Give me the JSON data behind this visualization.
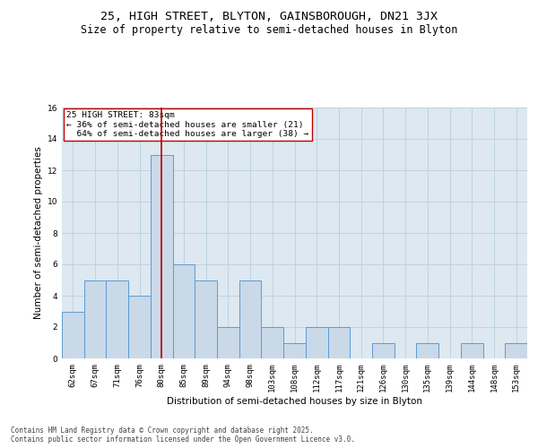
{
  "title_line1": "25, HIGH STREET, BLYTON, GAINSBOROUGH, DN21 3JX",
  "title_line2": "Size of property relative to semi-detached houses in Blyton",
  "xlabel": "Distribution of semi-detached houses by size in Blyton",
  "ylabel": "Number of semi-detached properties",
  "footer": "Contains HM Land Registry data © Crown copyright and database right 2025.\nContains public sector information licensed under the Open Government Licence v3.0.",
  "categories": [
    "62sqm",
    "67sqm",
    "71sqm",
    "76sqm",
    "80sqm",
    "85sqm",
    "89sqm",
    "94sqm",
    "98sqm",
    "103sqm",
    "108sqm",
    "112sqm",
    "117sqm",
    "121sqm",
    "126sqm",
    "130sqm",
    "135sqm",
    "139sqm",
    "144sqm",
    "148sqm",
    "153sqm"
  ],
  "values": [
    3,
    5,
    5,
    4,
    13,
    6,
    5,
    2,
    5,
    2,
    1,
    2,
    2,
    0,
    1,
    0,
    1,
    0,
    1,
    0,
    1
  ],
  "bar_color": "#c9d9e8",
  "bar_edge_color": "#5b9bd5",
  "highlight_index": 4,
  "highlight_line_color": "#c00000",
  "property_size": "83sqm",
  "pct_smaller": 36,
  "count_smaller": 21,
  "pct_larger": 64,
  "count_larger": 38,
  "annotation_box_edge_color": "#c00000",
  "ylim": [
    0,
    16
  ],
  "yticks": [
    0,
    2,
    4,
    6,
    8,
    10,
    12,
    14,
    16
  ],
  "grid_color": "#b8cfe0",
  "background_color": "#dde8f0",
  "fig_background": "#ffffff",
  "title_fontsize": 9.5,
  "subtitle_fontsize": 8.5,
  "axis_label_fontsize": 7.5,
  "tick_fontsize": 6.5,
  "annotation_fontsize": 6.8,
  "footer_fontsize": 5.5
}
